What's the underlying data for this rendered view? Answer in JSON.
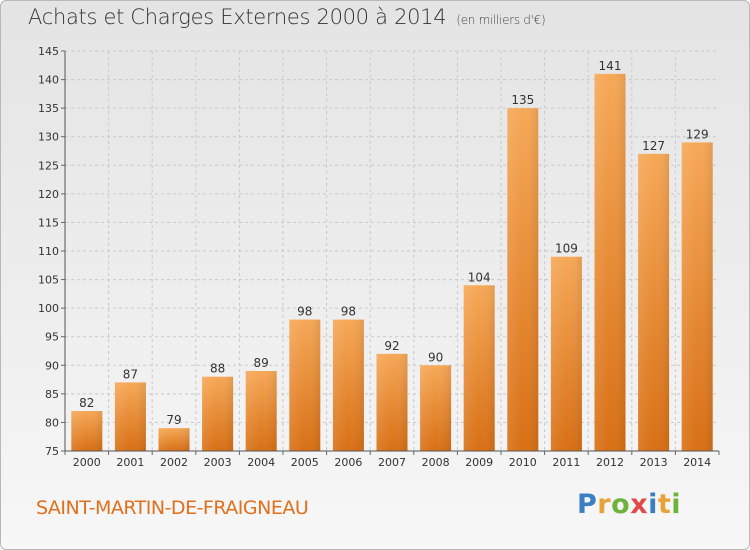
{
  "header": {
    "title": "Achats et Charges Externes 2000 à 2014",
    "subtitle": "(en milliers d'€)"
  },
  "footer": {
    "commune": "SAINT-MARTIN-DE-FRAIGNEAU",
    "logo": {
      "text": "Proxiti",
      "letters": [
        "P",
        "r",
        "o",
        "x",
        "i",
        "t",
        "i"
      ],
      "colors": [
        "#3a7fc4",
        "#e8a23a",
        "#6cb43c",
        "#e24a4a",
        "#3a7fc4",
        "#e8a23a",
        "#6cb43c"
      ]
    }
  },
  "chart_data": {
    "type": "bar",
    "categories": [
      "2000",
      "2001",
      "2002",
      "2003",
      "2004",
      "2005",
      "2006",
      "2007",
      "2008",
      "2009",
      "2010",
      "2011",
      "2012",
      "2013",
      "2014"
    ],
    "values": [
      82,
      87,
      79,
      88,
      89,
      98,
      98,
      92,
      90,
      104,
      135,
      109,
      141,
      127,
      129
    ],
    "ylim": [
      75,
      145
    ],
    "yticks": [
      75,
      80,
      85,
      90,
      95,
      100,
      105,
      110,
      115,
      120,
      125,
      130,
      135,
      140,
      145
    ],
    "grid": true,
    "bar_color": "#e98a2c",
    "xlabel": "",
    "ylabel": ""
  }
}
